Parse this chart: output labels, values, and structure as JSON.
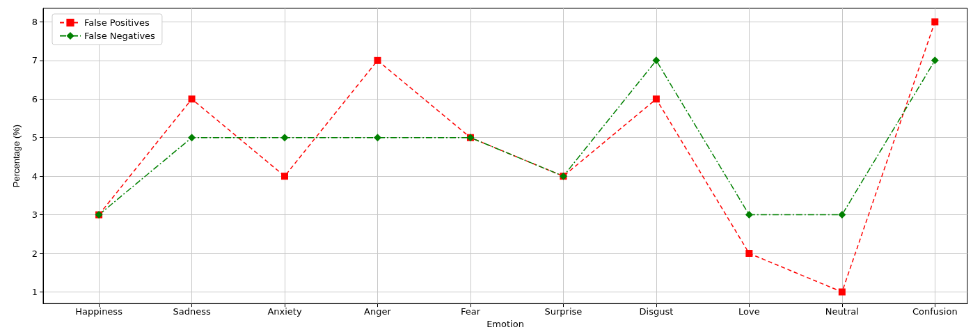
{
  "chart_data": {
    "type": "line",
    "xlabel": "Emotion",
    "ylabel": "Percentage (%)",
    "categories": [
      "Happiness",
      "Sadness",
      "Anxiety",
      "Anger",
      "Fear",
      "Surprise",
      "Disgust",
      "Love",
      "Neutral",
      "Confusion"
    ],
    "series": [
      {
        "name": "False Positives",
        "color": "#ff0000",
        "marker": "square",
        "line_style": "dashed",
        "values": [
          3,
          6,
          4,
          7,
          5,
          4,
          6,
          2,
          1,
          8
        ]
      },
      {
        "name": "False Negatives",
        "color": "#008000",
        "marker": "diamond",
        "line_style": "dashdot",
        "values": [
          3,
          5,
          5,
          5,
          5,
          4,
          7,
          3,
          3,
          7
        ]
      }
    ],
    "ylim": [
      0.7,
      8.35
    ],
    "yticks": [
      1,
      2,
      3,
      4,
      5,
      6,
      7,
      8
    ],
    "grid": true,
    "legend": "top left"
  }
}
